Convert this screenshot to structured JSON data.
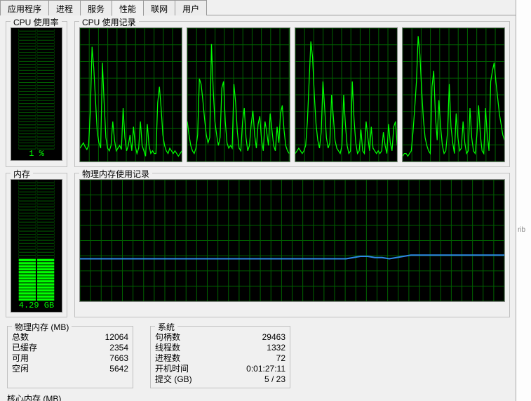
{
  "colors": {
    "bg_app": "#f0f0f0",
    "chart_bg": "#000000",
    "grid": "#006000",
    "cpu_line": "#00ff00",
    "mem_line": "#2e88e6",
    "gauge_text": "#00ff00"
  },
  "tabs": [
    {
      "label": "应用程序",
      "active": false
    },
    {
      "label": "进程",
      "active": false
    },
    {
      "label": "服务",
      "active": false
    },
    {
      "label": "性能",
      "active": true
    },
    {
      "label": "联网",
      "active": false
    },
    {
      "label": "用户",
      "active": false
    }
  ],
  "cpu_gauge": {
    "title": "CPU 使用率",
    "value_label": "1 %",
    "fill_pct": 1,
    "grid": {
      "rows": 40,
      "cols": 2
    }
  },
  "cpu_history": {
    "title": "CPU 使用记录",
    "panels": 4,
    "grid": {
      "v_lines": 11,
      "h_lines": 8
    },
    "series": [
      [
        10,
        12,
        14,
        11,
        9,
        12,
        38,
        86,
        70,
        46,
        22,
        14,
        10,
        74,
        44,
        18,
        10,
        8,
        12,
        30,
        16,
        8,
        10,
        12,
        9,
        40,
        18,
        8,
        12,
        20,
        8,
        26,
        12,
        6,
        10,
        30,
        12,
        8,
        4,
        28,
        12,
        6,
        8,
        6,
        6,
        44,
        56,
        40,
        20,
        12,
        8,
        6,
        10,
        8,
        6,
        8,
        6,
        4,
        6,
        8
      ],
      [
        30,
        20,
        12,
        8,
        6,
        10,
        20,
        62,
        58,
        46,
        32,
        20,
        14,
        18,
        88,
        54,
        30,
        20,
        12,
        18,
        55,
        60,
        30,
        14,
        10,
        12,
        10,
        58,
        44,
        22,
        10,
        8,
        30,
        40,
        18,
        8,
        12,
        28,
        38,
        20,
        10,
        28,
        34,
        16,
        8,
        30,
        22,
        12,
        36,
        24,
        12,
        8,
        26,
        14,
        36,
        42,
        24,
        12,
        8,
        6
      ],
      [
        6,
        8,
        10,
        8,
        6,
        8,
        12,
        30,
        60,
        90,
        78,
        50,
        28,
        16,
        10,
        22,
        60,
        40,
        18,
        10,
        14,
        50,
        34,
        16,
        10,
        8,
        6,
        12,
        50,
        28,
        12,
        6,
        8,
        60,
        32,
        14,
        6,
        8,
        24,
        8,
        6,
        30,
        18,
        8,
        26,
        10,
        8,
        6,
        8,
        6,
        8,
        22,
        12,
        6,
        28,
        14,
        8,
        26,
        30,
        12
      ],
      [
        4,
        6,
        6,
        4,
        6,
        8,
        22,
        40,
        60,
        94,
        80,
        54,
        32,
        18,
        12,
        8,
        6,
        56,
        68,
        34,
        16,
        46,
        26,
        12,
        6,
        8,
        22,
        58,
        26,
        14,
        6,
        36,
        18,
        8,
        10,
        30,
        14,
        6,
        8,
        40,
        18,
        8,
        6,
        20,
        42,
        20,
        8,
        6,
        40,
        20,
        8,
        60,
        68,
        74,
        60,
        48,
        36,
        28,
        20,
        16
      ]
    ]
  },
  "mem_gauge": {
    "title": "内存",
    "value_label": "4.29 GB",
    "fill_pct": 35,
    "grid": {
      "rows": 40,
      "cols": 2
    }
  },
  "mem_history": {
    "title": "物理内存使用记录",
    "grid": {
      "v_lines": 40,
      "h_lines": 8
    },
    "series": [
      35,
      35,
      35,
      35,
      35,
      35,
      35,
      35,
      35,
      35,
      35,
      35,
      35,
      35,
      35,
      35,
      35,
      35,
      35,
      35,
      35,
      35,
      35,
      35,
      35,
      35,
      35,
      35,
      35,
      35,
      35,
      35,
      35,
      35,
      35,
      35,
      35,
      35,
      36,
      37,
      37,
      36,
      36,
      35,
      36,
      37,
      38,
      38,
      38,
      38,
      38,
      38,
      38,
      38,
      38,
      38,
      38,
      38,
      38,
      38
    ]
  },
  "stats": {
    "phys_mem": {
      "title": "物理内存 (MB)",
      "rows": [
        {
          "k": "总数",
          "v": "12064"
        },
        {
          "k": "已缓存",
          "v": "2354"
        },
        {
          "k": "可用",
          "v": "7663"
        },
        {
          "k": "空闲",
          "v": "5642"
        }
      ]
    },
    "system": {
      "title": "系统",
      "rows": [
        {
          "k": "句柄数",
          "v": "29463"
        },
        {
          "k": "线程数",
          "v": "1332"
        },
        {
          "k": "进程数",
          "v": "72"
        },
        {
          "k": "开机时间",
          "v": "0:01:27:11"
        },
        {
          "k": "提交 (GB)",
          "v": "5 / 23"
        }
      ]
    },
    "kernel": {
      "title": "核心内存 (MB)"
    }
  },
  "side_hint": "rib"
}
